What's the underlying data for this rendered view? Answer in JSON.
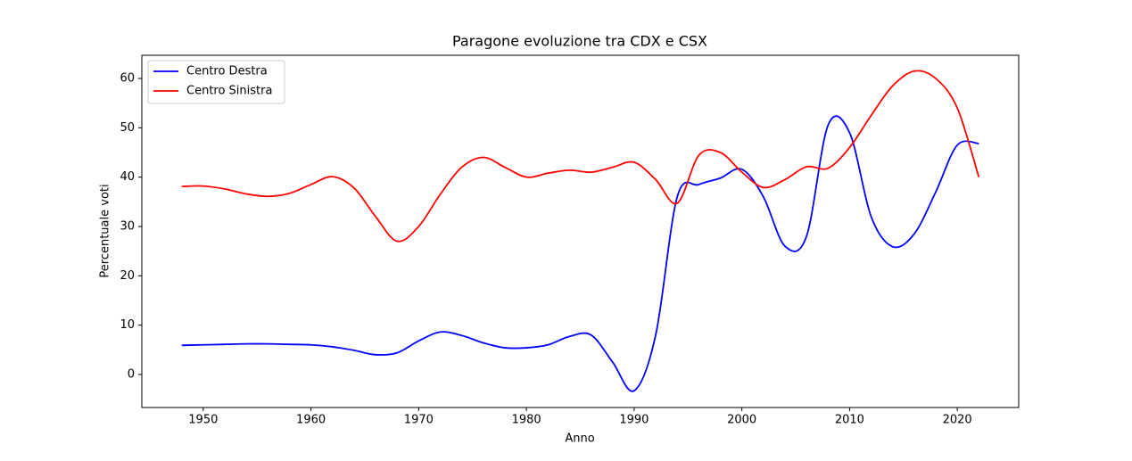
{
  "chart_data": {
    "type": "line",
    "title": "Paragone evoluzione tra CDX e CSX",
    "xlabel": "Anno",
    "ylabel": "Percentuale voti",
    "x": [
      1948,
      1950,
      1952,
      1954,
      1956,
      1958,
      1960,
      1962,
      1964,
      1966,
      1968,
      1970,
      1972,
      1974,
      1976,
      1978,
      1980,
      1982,
      1984,
      1986,
      1988,
      1990,
      1992,
      1994,
      1996,
      1998,
      2000,
      2002,
      2004,
      2006,
      2008,
      2010,
      2012,
      2014,
      2016,
      2018,
      2020,
      2022
    ],
    "series": [
      {
        "name": "Centro Destra",
        "color": "#0000ff",
        "values": [
          5.9,
          6.0,
          6.1,
          6.2,
          6.2,
          6.1,
          6.0,
          5.6,
          4.9,
          4.0,
          4.4,
          6.8,
          8.6,
          7.9,
          6.4,
          5.4,
          5.4,
          6.0,
          7.7,
          8.0,
          2.5,
          -3.3,
          8,
          36,
          38.5,
          39.8,
          41.6,
          36,
          26,
          28,
          50.5,
          49,
          32,
          25.9,
          28.5,
          37,
          46.5,
          46.8
        ]
      },
      {
        "name": "Centro Sinistra",
        "color": "#ff0000",
        "values": [
          38.1,
          38.2,
          37.6,
          36.6,
          36.1,
          36.7,
          38.5,
          40.1,
          37.8,
          32,
          27,
          30,
          36.5,
          42,
          44,
          42,
          40,
          40.8,
          41.4,
          41,
          42,
          43,
          39.5,
          34.7,
          44.4,
          45,
          41,
          37.9,
          39.5,
          42.1,
          41.8,
          46,
          52.5,
          58.5,
          61.5,
          60,
          54,
          40
        ]
      }
    ],
    "xlim": [
      1944.3,
      2025.7
    ],
    "xticks": [
      1950,
      1960,
      1970,
      1980,
      1990,
      2000,
      2010,
      2020
    ],
    "ylim": [
      -6.7,
      64.7
    ],
    "yticks": [
      0,
      10,
      20,
      30,
      40,
      50,
      60
    ],
    "grid": false,
    "legend": "upper left"
  }
}
